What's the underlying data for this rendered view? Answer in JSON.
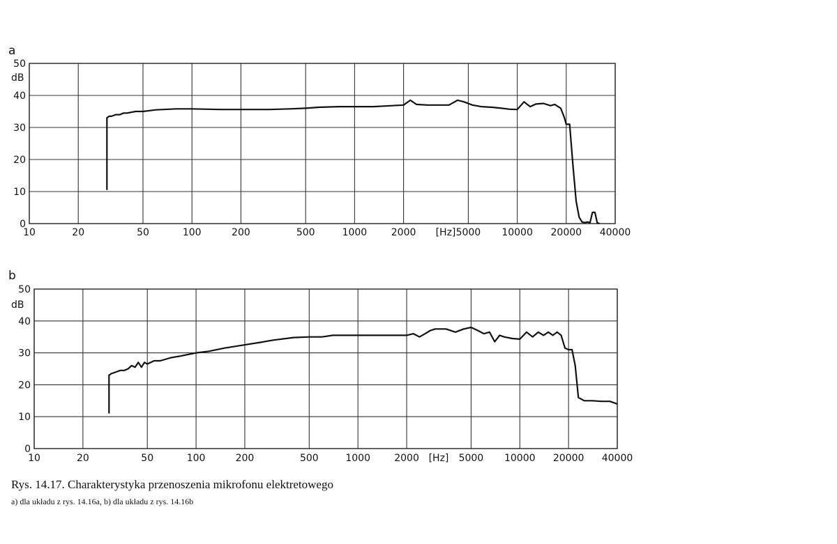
{
  "caption": {
    "title": "Rys. 14.17. Charakterystyka przenoszenia mikrofonu elektretowego",
    "subtitle": "a) dla układu z rys. 14.16a, b) dla układu z rys. 14.16b"
  },
  "chart_data": [
    {
      "type": "line",
      "panel_label": "a",
      "ylabel": "dB",
      "xunit_label": "[Hz]",
      "xscale": "log",
      "xlim": [
        10,
        40000
      ],
      "ylim": [
        0,
        50
      ],
      "grid": true,
      "x_ticks": [
        10,
        20,
        50,
        100,
        200,
        500,
        1000,
        2000,
        5000,
        10000,
        20000,
        40000
      ],
      "x_tick_labels": [
        "10",
        "20",
        "50",
        "100",
        "200",
        "500",
        "1000",
        "2000",
        "5000",
        "10000",
        "20000",
        "40000"
      ],
      "y_ticks": [
        0,
        10,
        20,
        30,
        40,
        50
      ],
      "y_tick_labels": [
        "0",
        "10",
        "20",
        "30",
        "40",
        "50"
      ],
      "series": [
        {
          "x": [
            30,
            30,
            31,
            32,
            34,
            36,
            38,
            40,
            45,
            50,
            60,
            80,
            100,
            150,
            200,
            300,
            400,
            500,
            600,
            800,
            1000,
            1300,
            1700,
            2000,
            2200,
            2400,
            2800,
            3200,
            3800,
            4300,
            4700,
            5300,
            6000,
            7000,
            8000,
            9000,
            10000,
            11000,
            12000,
            13000,
            14500,
            16000,
            17000,
            18500,
            19500,
            20000,
            21000,
            22000,
            23000,
            24000,
            25000,
            26000,
            27000,
            28000,
            29000,
            30000,
            31000,
            32000
          ],
          "y": [
            10.5,
            33,
            33.5,
            33.5,
            34,
            34,
            34.5,
            34.5,
            35,
            35,
            35.5,
            35.8,
            35.8,
            35.6,
            35.6,
            35.6,
            35.8,
            36,
            36.3,
            36.5,
            36.5,
            36.5,
            36.8,
            37,
            38.5,
            37.2,
            37,
            37,
            37,
            38.5,
            38,
            37,
            36.5,
            36.3,
            36,
            35.7,
            35.6,
            38,
            36.5,
            37.3,
            37.5,
            36.8,
            37.2,
            36,
            33,
            31,
            31,
            18,
            7,
            2,
            0.5,
            0.3,
            0.5,
            0.3,
            3.5,
            3.5,
            0.3,
            0
          ]
        }
      ]
    },
    {
      "type": "line",
      "panel_label": "b",
      "ylabel": "dB",
      "xunit_label": "[Hz]",
      "xscale": "log",
      "xlim": [
        10,
        40000
      ],
      "ylim": [
        0,
        50
      ],
      "grid": true,
      "x_ticks": [
        10,
        20,
        50,
        100,
        200,
        500,
        1000,
        2000,
        5000,
        10000,
        20000,
        40000
      ],
      "x_tick_labels": [
        "10",
        "20",
        "50",
        "100",
        "200",
        "500",
        "1000",
        "2000",
        "5000",
        "10000",
        "20000",
        "40000"
      ],
      "y_ticks": [
        0,
        10,
        20,
        30,
        40,
        50
      ],
      "y_tick_labels": [
        "0",
        "10",
        "20",
        "30",
        "40",
        "50"
      ],
      "series": [
        {
          "x": [
            29,
            29,
            30,
            32,
            34,
            36,
            38,
            40,
            42,
            44,
            46,
            48,
            50,
            55,
            60,
            70,
            80,
            100,
            120,
            150,
            200,
            250,
            300,
            400,
            500,
            600,
            700,
            800,
            1000,
            1200,
            1500,
            2000,
            2200,
            2400,
            2600,
            2800,
            3000,
            3500,
            4000,
            4500,
            5000,
            5500,
            6000,
            6500,
            7000,
            7500,
            8000,
            9000,
            10000,
            11000,
            12000,
            13000,
            14000,
            15000,
            16000,
            17000,
            18000,
            19000,
            20000,
            21000,
            22000,
            23000,
            25000,
            28000,
            32000,
            36000,
            40000
          ],
          "y": [
            11,
            23,
            23.5,
            24,
            24.5,
            24.5,
            25,
            26,
            25.5,
            27,
            25.5,
            27,
            26.5,
            27.5,
            27.5,
            28.5,
            29,
            30,
            30.5,
            31.5,
            32.5,
            33.3,
            34,
            34.8,
            35,
            35,
            35.5,
            35.5,
            35.5,
            35.5,
            35.5,
            35.5,
            36,
            35,
            36,
            37,
            37.5,
            37.5,
            36.5,
            37.5,
            38,
            37,
            36,
            36.5,
            33.5,
            35.5,
            35,
            34.5,
            34.3,
            36.5,
            35,
            36.5,
            35.5,
            36.5,
            35.5,
            36.5,
            35.5,
            31.5,
            31,
            31,
            26,
            16,
            15,
            15,
            14.8,
            14.8,
            14
          ]
        }
      ]
    }
  ]
}
